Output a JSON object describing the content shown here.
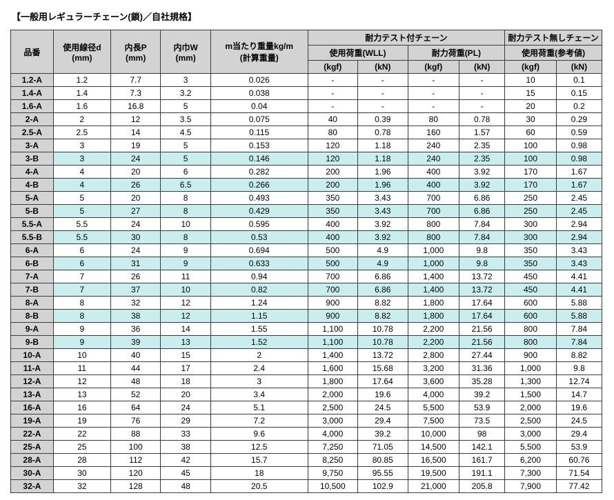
{
  "title": "【一般用レギュラーチェーン(鎖)／自社規格】",
  "head": {
    "grp1": "耐力テスト付チェーン",
    "grp2": "耐力テスト無しチェーン",
    "sub1": "使用荷重(WLL)",
    "sub2": "耐力荷重(PL)",
    "sub3": "使用荷重(参考値)",
    "c0": "品番",
    "c1a": "使用線径d",
    "c1b": "(mm)",
    "c2a": "内長P",
    "c2b": "(mm)",
    "c3a": "内巾W",
    "c3b": "(mm)",
    "c4a": "m当たり重量kg/m",
    "c4b": "(計算重量)",
    "u_kgf": "(kgf)",
    "u_kn": "(kN)"
  },
  "rows": [
    {
      "p": "1.2-A",
      "d": "1.2",
      "P": "7.7",
      "W": "3",
      "w": "0.026",
      "a": "-",
      "b": "-",
      "c": "-",
      "e": "-",
      "f": "10",
      "g": "0.1"
    },
    {
      "p": "1.4-A",
      "d": "1.4",
      "P": "7.3",
      "W": "3.2",
      "w": "0.038",
      "a": "-",
      "b": "-",
      "c": "-",
      "e": "-",
      "f": "15",
      "g": "0.15"
    },
    {
      "p": "1.6-A",
      "d": "1.6",
      "P": "16.8",
      "W": "5",
      "w": "0.04",
      "a": "-",
      "b": "-",
      "c": "-",
      "e": "-",
      "f": "20",
      "g": "0.2"
    },
    {
      "p": "2-A",
      "d": "2",
      "P": "12",
      "W": "3.5",
      "w": "0.075",
      "a": "40",
      "b": "0.39",
      "c": "80",
      "e": "0.78",
      "f": "30",
      "g": "0.29"
    },
    {
      "p": "2.5-A",
      "d": "2.5",
      "P": "14",
      "W": "4.5",
      "w": "0.115",
      "a": "80",
      "b": "0.78",
      "c": "160",
      "e": "1.57",
      "f": "60",
      "g": "0.59"
    },
    {
      "p": "3-A",
      "d": "3",
      "P": "19",
      "W": "5",
      "w": "0.153",
      "a": "120",
      "b": "1.18",
      "c": "240",
      "e": "2.35",
      "f": "100",
      "g": "0.98"
    },
    {
      "p": "3-B",
      "d": "3",
      "P": "24",
      "W": "5",
      "w": "0.146",
      "a": "120",
      "b": "1.18",
      "c": "240",
      "e": "2.35",
      "f": "100",
      "g": "0.98",
      "hl": 1
    },
    {
      "p": "4-A",
      "d": "4",
      "P": "20",
      "W": "6",
      "w": "0.282",
      "a": "200",
      "b": "1.96",
      "c": "400",
      "e": "3.92",
      "f": "170",
      "g": "1.67"
    },
    {
      "p": "4-B",
      "d": "4",
      "P": "26",
      "W": "6.5",
      "w": "0.266",
      "a": "200",
      "b": "1.96",
      "c": "400",
      "e": "3.92",
      "f": "170",
      "g": "1.67",
      "hl": 1
    },
    {
      "p": "5-A",
      "d": "5",
      "P": "20",
      "W": "8",
      "w": "0.493",
      "a": "350",
      "b": "3.43",
      "c": "700",
      "e": "6.86",
      "f": "250",
      "g": "2.45"
    },
    {
      "p": "5-B",
      "d": "5",
      "P": "27",
      "W": "8",
      "w": "0.429",
      "a": "350",
      "b": "3.43",
      "c": "700",
      "e": "6.86",
      "f": "250",
      "g": "2.45",
      "hl": 1
    },
    {
      "p": "5.5-A",
      "d": "5.5",
      "P": "24",
      "W": "10",
      "w": "0.595",
      "a": "400",
      "b": "3.92",
      "c": "800",
      "e": "7.84",
      "f": "300",
      "g": "2.94"
    },
    {
      "p": "5.5-B",
      "d": "5.5",
      "P": "30",
      "W": "8",
      "w": "0.53",
      "a": "400",
      "b": "3.92",
      "c": "800",
      "e": "7.84",
      "f": "300",
      "g": "2.94",
      "hl": 1
    },
    {
      "p": "6-A",
      "d": "6",
      "P": "24",
      "W": "9",
      "w": "0.694",
      "a": "500",
      "b": "4.9",
      "c": "1,000",
      "e": "9.8",
      "f": "350",
      "g": "3.43"
    },
    {
      "p": "6-B",
      "d": "6",
      "P": "31",
      "W": "9",
      "w": "0.633",
      "a": "500",
      "b": "4.9",
      "c": "1,000",
      "e": "9.8",
      "f": "350",
      "g": "3.43",
      "hl": 1
    },
    {
      "p": "7-A",
      "d": "7",
      "P": "26",
      "W": "11",
      "w": "0.94",
      "a": "700",
      "b": "6.86",
      "c": "1,400",
      "e": "13.72",
      "f": "450",
      "g": "4.41"
    },
    {
      "p": "7-B",
      "d": "7",
      "P": "37",
      "W": "10",
      "w": "0.82",
      "a": "700",
      "b": "6.86",
      "c": "1,400",
      "e": "13.72",
      "f": "450",
      "g": "4.41",
      "hl": 1
    },
    {
      "p": "8-A",
      "d": "8",
      "P": "32",
      "W": "12",
      "w": "1.24",
      "a": "900",
      "b": "8.82",
      "c": "1,800",
      "e": "17.64",
      "f": "600",
      "g": "5.88"
    },
    {
      "p": "8-B",
      "d": "8",
      "P": "38",
      "W": "12",
      "w": "1.15",
      "a": "900",
      "b": "8.82",
      "c": "1,800",
      "e": "17.64",
      "f": "600",
      "g": "5.88",
      "hl": 1
    },
    {
      "p": "9-A",
      "d": "9",
      "P": "36",
      "W": "14",
      "w": "1.55",
      "a": "1,100",
      "b": "10.78",
      "c": "2,200",
      "e": "21.56",
      "f": "800",
      "g": "7.84"
    },
    {
      "p": "9-B",
      "d": "9",
      "P": "39",
      "W": "13",
      "w": "1.52",
      "a": "1,100",
      "b": "10.78",
      "c": "2,200",
      "e": "21.56",
      "f": "800",
      "g": "7.84",
      "hl": 1
    },
    {
      "p": "10-A",
      "d": "10",
      "P": "40",
      "W": "15",
      "w": "2",
      "a": "1,400",
      "b": "13.72",
      "c": "2,800",
      "e": "27.44",
      "f": "900",
      "g": "8.82"
    },
    {
      "p": "11-A",
      "d": "11",
      "P": "44",
      "W": "17",
      "w": "2.4",
      "a": "1,600",
      "b": "15.68",
      "c": "3,200",
      "e": "31.36",
      "f": "1,000",
      "g": "9.8"
    },
    {
      "p": "12-A",
      "d": "12",
      "P": "48",
      "W": "18",
      "w": "3",
      "a": "1,800",
      "b": "17.64",
      "c": "3,600",
      "e": "35.28",
      "f": "1,300",
      "g": "12.74"
    },
    {
      "p": "13-A",
      "d": "13",
      "P": "52",
      "W": "20",
      "w": "3.4",
      "a": "2,000",
      "b": "19.6",
      "c": "4,000",
      "e": "39.2",
      "f": "1,500",
      "g": "14.7"
    },
    {
      "p": "16-A",
      "d": "16",
      "P": "64",
      "W": "24",
      "w": "5.1",
      "a": "2,500",
      "b": "24.5",
      "c": "5,500",
      "e": "53.9",
      "f": "2,000",
      "g": "19.6"
    },
    {
      "p": "19-A",
      "d": "19",
      "P": "76",
      "W": "29",
      "w": "7.2",
      "a": "3,000",
      "b": "29.4",
      "c": "7,500",
      "e": "73.5",
      "f": "2,500",
      "g": "24.5"
    },
    {
      "p": "22-A",
      "d": "22",
      "P": "88",
      "W": "33",
      "w": "9.6",
      "a": "4,000",
      "b": "39.2",
      "c": "10,000",
      "e": "98",
      "f": "3,000",
      "g": "29.4"
    },
    {
      "p": "25-A",
      "d": "25",
      "P": "100",
      "W": "38",
      "w": "12.5",
      "a": "7,250",
      "b": "71.05",
      "c": "14,500",
      "e": "142.1",
      "f": "5,500",
      "g": "53.9"
    },
    {
      "p": "28-A",
      "d": "28",
      "P": "112",
      "W": "42",
      "w": "15.7",
      "a": "8,250",
      "b": "80.85",
      "c": "16,500",
      "e": "161.7",
      "f": "6,200",
      "g": "60.76"
    },
    {
      "p": "30-A",
      "d": "30",
      "P": "120",
      "W": "45",
      "w": "18",
      "a": "9,750",
      "b": "95.55",
      "c": "19,500",
      "e": "191.1",
      "f": "7,300",
      "g": "71.54"
    },
    {
      "p": "32-A",
      "d": "32",
      "P": "128",
      "W": "48",
      "w": "20.5",
      "a": "10,500",
      "b": "102.9",
      "c": "21,000",
      "e": "205.8",
      "f": "7,900",
      "g": "77.42"
    }
  ]
}
